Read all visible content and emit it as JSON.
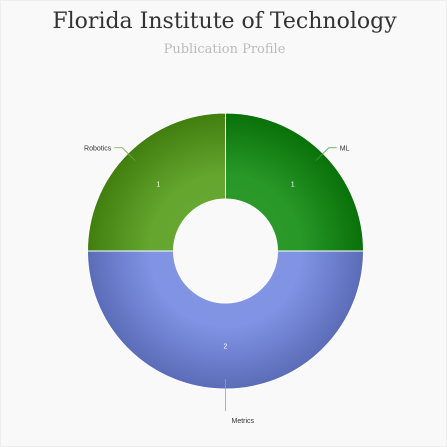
{
  "chart_data": {
    "type": "pie",
    "variant": "donut",
    "title": "Florida Institute of Technology",
    "subtitle": "Publication Profile",
    "series": [
      {
        "name": "ML",
        "value": 1,
        "color": "#0b8a0b"
      },
      {
        "name": "Metrics",
        "value": 2,
        "color": "#6f84e0"
      },
      {
        "name": "Robotics",
        "value": 1,
        "color": "#4f9a12"
      }
    ],
    "legend": "none"
  }
}
